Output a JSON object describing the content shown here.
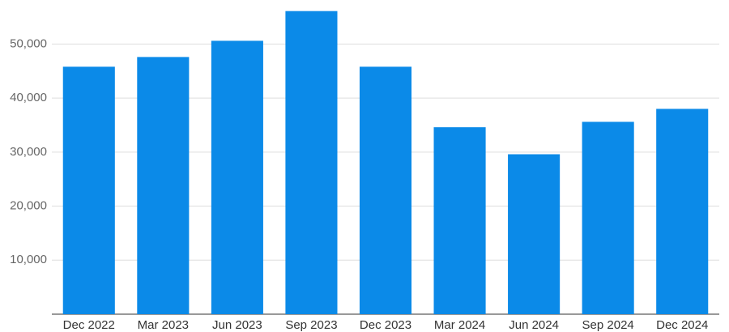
{
  "chart_data": {
    "type": "bar",
    "categories": [
      "Dec 2022",
      "Mar 2023",
      "Jun 2023",
      "Sep 2023",
      "Dec 2023",
      "Mar 2024",
      "Jun 2024",
      "Sep 2024",
      "Dec 2024"
    ],
    "values": [
      45800,
      47600,
      50600,
      56100,
      45800,
      34600,
      29600,
      35600,
      38000
    ],
    "color": "#0b8ae8",
    "ylim": [
      0,
      58000
    ],
    "yticks": [
      {
        "value": 10000,
        "label": "10,000"
      },
      {
        "value": 20000,
        "label": "20,000"
      },
      {
        "value": 30000,
        "label": "30,000"
      },
      {
        "value": 40000,
        "label": "40,000"
      },
      {
        "value": 50000,
        "label": "50,000"
      }
    ],
    "grid": true
  }
}
